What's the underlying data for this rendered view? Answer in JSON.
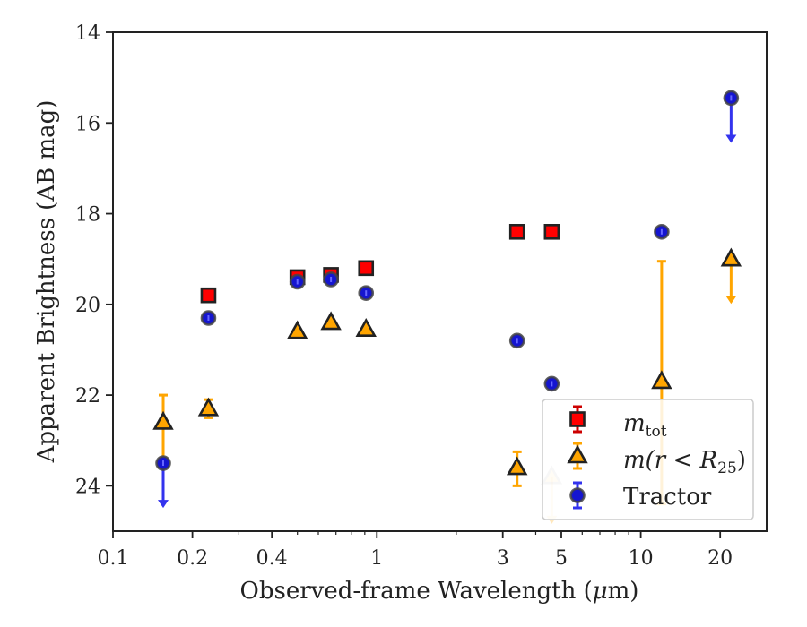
{
  "chart_data": {
    "type": "scatter",
    "title": "",
    "xlabel_prefix": "Observed-frame Wavelength (",
    "xlabel_mu": "μ",
    "xlabel_suffix": "m)",
    "xlabel": "Observed-frame Wavelength (μm)",
    "ylabel": "Apparent Brightness (AB mag)",
    "x_scale": "log",
    "y_inverted": true,
    "xlim": [
      0.1,
      30
    ],
    "ylim": [
      25,
      14
    ],
    "x_ticks": [
      {
        "value": 0.1,
        "label": "0.1"
      },
      {
        "value": 0.2,
        "label": "0.2"
      },
      {
        "value": 0.4,
        "label": "0.4"
      },
      {
        "value": 1,
        "label": "1"
      },
      {
        "value": 3,
        "label": "3"
      },
      {
        "value": 5,
        "label": "5"
      },
      {
        "value": 10,
        "label": "10"
      },
      {
        "value": 20,
        "label": "20"
      }
    ],
    "y_ticks": [
      {
        "value": 14,
        "label": "14"
      },
      {
        "value": 16,
        "label": "16"
      },
      {
        "value": 18,
        "label": "18"
      },
      {
        "value": 20,
        "label": "20"
      },
      {
        "value": 22,
        "label": "22"
      },
      {
        "value": 24,
        "label": "24"
      }
    ],
    "grid": false,
    "legend_position": "bottom-right",
    "series": [
      {
        "name": "m_tot",
        "marker": "square",
        "face_color": "#ff0000",
        "edge_color": "#222222",
        "err_color": "#cc0000",
        "points": [
          {
            "x": 0.23,
            "y": 19.8
          },
          {
            "x": 0.5,
            "y": 19.4
          },
          {
            "x": 0.67,
            "y": 19.35
          },
          {
            "x": 0.91,
            "y": 19.2
          },
          {
            "x": 3.4,
            "y": 18.4
          },
          {
            "x": 4.6,
            "y": 18.4
          }
        ]
      },
      {
        "name": "m(r < R25)",
        "marker": "triangle",
        "face_color": "#ffa500",
        "edge_color": "#222222",
        "err_color": "#ffa500",
        "points": [
          {
            "x": 0.155,
            "y": 22.6,
            "err_low": 22.0,
            "err_high": 23.4
          },
          {
            "x": 0.23,
            "y": 22.3,
            "err_low": 22.1,
            "err_high": 22.5
          },
          {
            "x": 0.5,
            "y": 20.6
          },
          {
            "x": 0.67,
            "y": 20.4
          },
          {
            "x": 0.91,
            "y": 20.55
          },
          {
            "x": 3.4,
            "y": 23.6,
            "err_low": 23.25,
            "err_high": 24.0
          },
          {
            "x": 4.6,
            "y": 23.8,
            "upper_limit": true,
            "limit_to": 24.8,
            "faded": true
          },
          {
            "x": 12.0,
            "y": 21.7,
            "err_low": 19.05,
            "err_high": 24.4
          },
          {
            "x": 22.0,
            "y": 19.0,
            "upper_limit": true,
            "limit_to": 19.95
          }
        ]
      },
      {
        "name": "Tractor",
        "marker": "circle",
        "face_color": "#1515d0",
        "edge_color": "#444444",
        "err_color": "#3333ee",
        "points": [
          {
            "x": 0.155,
            "y": 23.5,
            "upper_limit": true,
            "limit_to": 24.45
          },
          {
            "x": 0.23,
            "y": 20.3
          },
          {
            "x": 0.5,
            "y": 19.5
          },
          {
            "x": 0.67,
            "y": 19.45
          },
          {
            "x": 0.91,
            "y": 19.75
          },
          {
            "x": 3.4,
            "y": 20.8
          },
          {
            "x": 4.6,
            "y": 21.75
          },
          {
            "x": 12.0,
            "y": 18.4
          },
          {
            "x": 22.0,
            "y": 15.45,
            "upper_limit": true,
            "limit_to": 16.4
          }
        ]
      }
    ]
  },
  "legend": {
    "mtot_main": "m",
    "mtot_sub": "tot",
    "mr_prefix": "m(r < R",
    "mr_sub": "25",
    "mr_suffix": ")",
    "tractor": "Tractor"
  }
}
